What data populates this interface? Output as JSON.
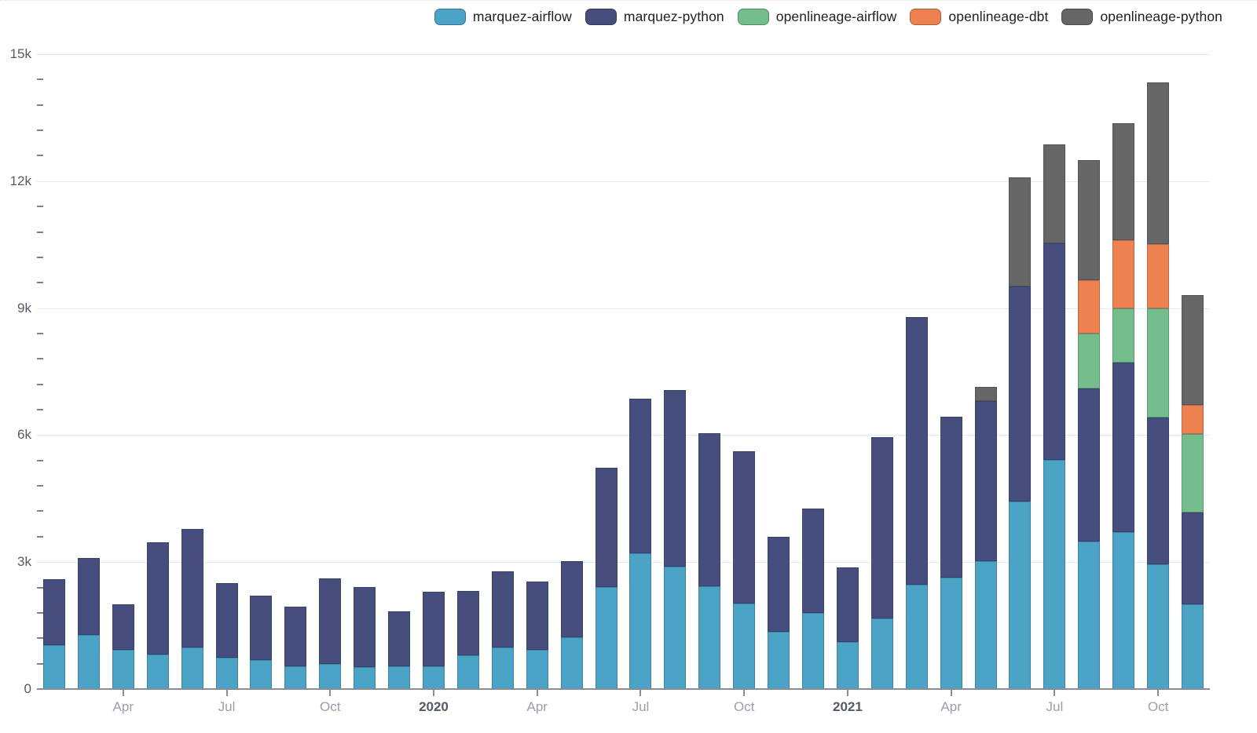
{
  "chart_data": {
    "type": "bar",
    "stacked": true,
    "title": "",
    "grid": true,
    "legend_position": "top-right",
    "x": [
      "2019-02",
      "2019-03",
      "2019-04",
      "2019-05",
      "2019-06",
      "2019-07",
      "2019-08",
      "2019-09",
      "2019-10",
      "2019-11",
      "2019-12",
      "2020-01",
      "2020-02",
      "2020-03",
      "2020-04",
      "2020-05",
      "2020-06",
      "2020-07",
      "2020-08",
      "2020-09",
      "2020-10",
      "2020-11",
      "2020-12",
      "2021-01",
      "2021-02",
      "2021-03",
      "2021-04",
      "2021-05",
      "2021-06",
      "2021-07",
      "2021-08",
      "2021-09",
      "2021-10",
      "2021-11"
    ],
    "series": [
      {
        "name": "marquez-airflow",
        "color": "#4ba3c6",
        "values": [
          1030,
          1280,
          920,
          820,
          990,
          740,
          680,
          530,
          590,
          510,
          530,
          530,
          800,
          990,
          920,
          1230,
          2410,
          3210,
          2890,
          2420,
          2020,
          1360,
          1800,
          1110,
          1670,
          2470,
          2640,
          3020,
          4430,
          5420,
          3480,
          3710,
          2940,
          2010
        ]
      },
      {
        "name": "marquez-python",
        "color": "#464e7e",
        "values": [
          1560,
          1810,
          1090,
          2640,
          2790,
          1770,
          1530,
          1410,
          2030,
          1900,
          1310,
          1760,
          1520,
          1800,
          1620,
          1790,
          2810,
          3650,
          4180,
          3630,
          3600,
          2240,
          2460,
          1760,
          4290,
          6310,
          3790,
          3790,
          5090,
          5110,
          3620,
          4010,
          3470,
          2160
        ]
      },
      {
        "name": "openlineage-airflow",
        "color": "#74bd8c",
        "values": [
          0,
          0,
          0,
          0,
          0,
          0,
          0,
          0,
          0,
          0,
          0,
          0,
          0,
          0,
          0,
          0,
          0,
          0,
          0,
          0,
          0,
          0,
          0,
          0,
          0,
          0,
          0,
          0,
          0,
          0,
          1290,
          1280,
          2580,
          1850
        ]
      },
      {
        "name": "openlineage-dbt",
        "color": "#ee8150",
        "values": [
          0,
          0,
          0,
          0,
          0,
          0,
          0,
          0,
          0,
          0,
          0,
          0,
          0,
          0,
          0,
          0,
          0,
          0,
          0,
          0,
          0,
          0,
          0,
          0,
          0,
          0,
          0,
          0,
          0,
          0,
          1270,
          1610,
          1530,
          690
        ]
      },
      {
        "name": "openlineage-python",
        "color": "#666666",
        "values": [
          0,
          0,
          0,
          0,
          0,
          0,
          0,
          0,
          0,
          0,
          0,
          0,
          0,
          0,
          0,
          0,
          0,
          0,
          0,
          0,
          0,
          0,
          0,
          0,
          0,
          0,
          0,
          330,
          2570,
          2330,
          2830,
          2760,
          3810,
          2590
        ]
      }
    ],
    "y_axis": {
      "min": 0,
      "max": 15000,
      "minor_tick_step": 600,
      "major_ticks": [
        {
          "value": 0,
          "label": "0"
        },
        {
          "value": 3000,
          "label": "3k"
        },
        {
          "value": 6000,
          "label": "6k"
        },
        {
          "value": 9000,
          "label": "9k"
        },
        {
          "value": 12000,
          "label": "12k"
        },
        {
          "value": 15000,
          "label": "15k"
        }
      ]
    },
    "x_axis": {
      "ticks": [
        {
          "month_index": 2,
          "label": "Apr",
          "bold": false
        },
        {
          "month_index": 5,
          "label": "Jul",
          "bold": false
        },
        {
          "month_index": 8,
          "label": "Oct",
          "bold": false
        },
        {
          "month_index": 11,
          "label": "2020",
          "bold": true
        },
        {
          "month_index": 14,
          "label": "Apr",
          "bold": false
        },
        {
          "month_index": 17,
          "label": "Jul",
          "bold": false
        },
        {
          "month_index": 20,
          "label": "Oct",
          "bold": false
        },
        {
          "month_index": 23,
          "label": "2021",
          "bold": true
        },
        {
          "month_index": 26,
          "label": "Apr",
          "bold": false
        },
        {
          "month_index": 29,
          "label": "Jul",
          "bold": false
        },
        {
          "month_index": 32,
          "label": "Oct",
          "bold": false
        }
      ]
    }
  }
}
